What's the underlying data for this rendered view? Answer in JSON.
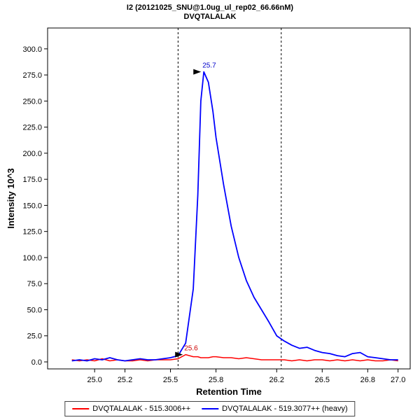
{
  "title": {
    "line1": "I2 (20121025_SNU@1.0ug_ul_rep02_66.66nM)",
    "line2": "DVQTALALAK"
  },
  "legend": {
    "items": [
      {
        "label": "DVQTALALAK - 515.3006++",
        "color": "#ff0000"
      },
      {
        "label": "DVQTALALAK - 519.3077++ (heavy)",
        "color": "#0000ff"
      }
    ]
  },
  "chart_data": {
    "type": "line",
    "title": "I2 (20121025_SNU@1.0ug_ul_rep02_66.66nM) / DVQTALALAK",
    "xlabel": "Retention Time",
    "ylabel": "Intensity 10^3",
    "xlim": [
      24.69,
      27.08
    ],
    "ylim": [
      -6.7,
      320
    ],
    "xticks": [
      25.0,
      25.2,
      25.5,
      25.8,
      26.2,
      26.5,
      26.8,
      27.0
    ],
    "yticks": [
      0,
      25,
      50,
      75,
      100,
      125,
      150,
      175,
      200,
      225,
      250,
      275,
      300
    ],
    "grid": false,
    "legend_position": "bottom",
    "boundaries": [
      25.55,
      26.23
    ],
    "x": [
      24.85,
      24.9,
      24.95,
      25.0,
      25.05,
      25.1,
      25.15,
      25.2,
      25.25,
      25.3,
      25.35,
      25.4,
      25.45,
      25.5,
      25.55,
      25.6,
      25.65,
      25.68,
      25.7,
      25.72,
      25.75,
      25.78,
      25.8,
      25.85,
      25.9,
      25.95,
      26.0,
      26.05,
      26.1,
      26.15,
      26.2,
      26.25,
      26.3,
      26.35,
      26.4,
      26.45,
      26.5,
      26.55,
      26.6,
      26.65,
      26.7,
      26.75,
      26.8,
      26.85,
      26.9,
      26.95,
      27.0
    ],
    "series": [
      {
        "name": "DVQTALALAK - 515.3006++",
        "color": "#ff0000",
        "width": 1.5,
        "values": [
          2,
          1,
          2,
          1,
          3,
          1,
          2,
          1,
          1,
          2,
          1,
          2,
          2,
          2,
          3,
          7,
          5,
          5,
          4,
          4,
          4,
          5,
          5,
          4,
          4,
          3,
          4,
          3,
          2,
          2,
          2,
          2,
          1,
          2,
          1,
          2,
          2,
          1,
          2,
          1,
          2,
          1,
          2,
          1,
          1,
          2,
          1
        ]
      },
      {
        "name": "DVQTALALAK - 519.3077++ (heavy)",
        "color": "#0000ff",
        "width": 1.8,
        "values": [
          1,
          2,
          1,
          3,
          2,
          4,
          2,
          1,
          2,
          3,
          2,
          2,
          3,
          4,
          6,
          18,
          70,
          160,
          250,
          278,
          268,
          240,
          215,
          170,
          130,
          100,
          78,
          62,
          50,
          38,
          25,
          20,
          16,
          13,
          14,
          11,
          9,
          8,
          6,
          5,
          8,
          9,
          5,
          4,
          3,
          2,
          2
        ]
      }
    ],
    "annotations": [
      {
        "text": "25.7",
        "x": 25.72,
        "y": 278,
        "color": "#0000cc"
      },
      {
        "text": "25.6",
        "x": 25.6,
        "y": 7,
        "color": "#cc0000"
      }
    ]
  }
}
